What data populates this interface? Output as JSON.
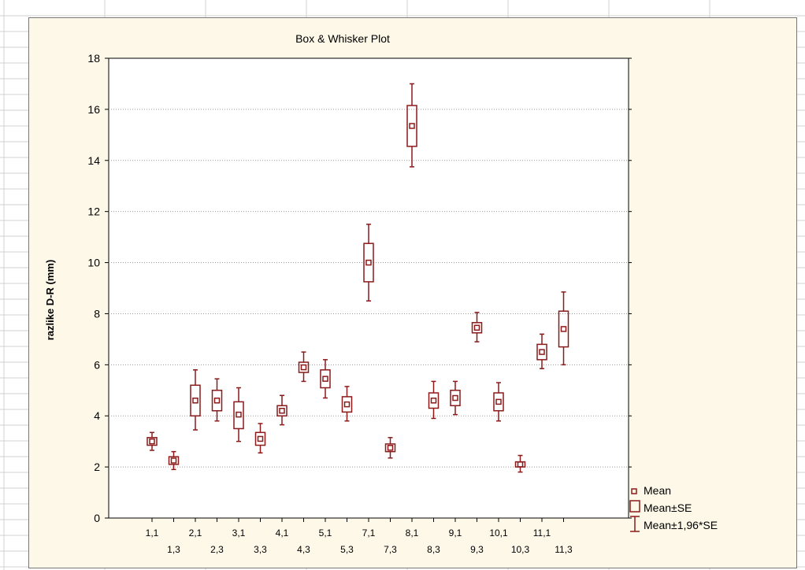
{
  "colors": {
    "sheet_bg": "#ffffff",
    "sheet_grid": "#d0d0d0",
    "chart_bg": "#fdf8e8",
    "plot_bg": "#ffffff",
    "series": "#8b1a1a",
    "gridline": "#9a9a9a"
  },
  "chart_data": {
    "type": "box",
    "title": "Box & Whisker Plot",
    "xlabel": "",
    "ylabel": "razlike D-R (mm)",
    "ylim": [
      0,
      18
    ],
    "yticks": [
      0,
      2,
      4,
      6,
      8,
      10,
      12,
      14,
      16,
      18
    ],
    "grid": "horizontal dotted",
    "legend_position": "bottom-right",
    "categories": [
      "1,1",
      "1,3",
      "2,1",
      "2,3",
      "3,1",
      "3,3",
      "4,1",
      "4,3",
      "5,1",
      "5,3",
      "7,1",
      "7,3",
      "8,1",
      "8,3",
      "9,1",
      "9,3",
      "10,1",
      "10,3",
      "11,1",
      "11,3"
    ],
    "mean": [
      3.0,
      2.25,
      4.6,
      4.6,
      4.05,
      3.1,
      4.2,
      5.9,
      5.45,
      4.45,
      10.0,
      2.75,
      15.35,
      4.6,
      4.7,
      7.45,
      4.55,
      2.1,
      6.5,
      7.4
    ],
    "se_low": [
      2.85,
      2.1,
      4.0,
      4.2,
      3.5,
      2.85,
      4.0,
      5.7,
      5.1,
      4.15,
      9.25,
      2.6,
      14.55,
      4.3,
      4.4,
      7.25,
      4.2,
      2.0,
      6.2,
      6.7
    ],
    "se_high": [
      3.15,
      2.4,
      5.2,
      5.0,
      4.55,
      3.35,
      4.4,
      6.1,
      5.8,
      4.75,
      10.75,
      2.9,
      16.15,
      4.9,
      5.0,
      7.65,
      4.9,
      2.2,
      6.8,
      8.1
    ],
    "ci_low": [
      2.65,
      1.9,
      3.45,
      3.8,
      3.0,
      2.55,
      3.65,
      5.35,
      4.7,
      3.8,
      8.5,
      2.35,
      13.75,
      3.9,
      4.05,
      6.9,
      3.8,
      1.8,
      5.85,
      6.0
    ],
    "ci_high": [
      3.35,
      2.6,
      5.8,
      5.45,
      5.1,
      3.7,
      4.8,
      6.5,
      6.2,
      5.15,
      11.5,
      3.15,
      17.0,
      5.35,
      5.35,
      8.05,
      5.3,
      2.45,
      7.2,
      8.85
    ],
    "legend": [
      "Mean",
      "Mean±SE",
      "Mean±1,96*SE"
    ]
  }
}
